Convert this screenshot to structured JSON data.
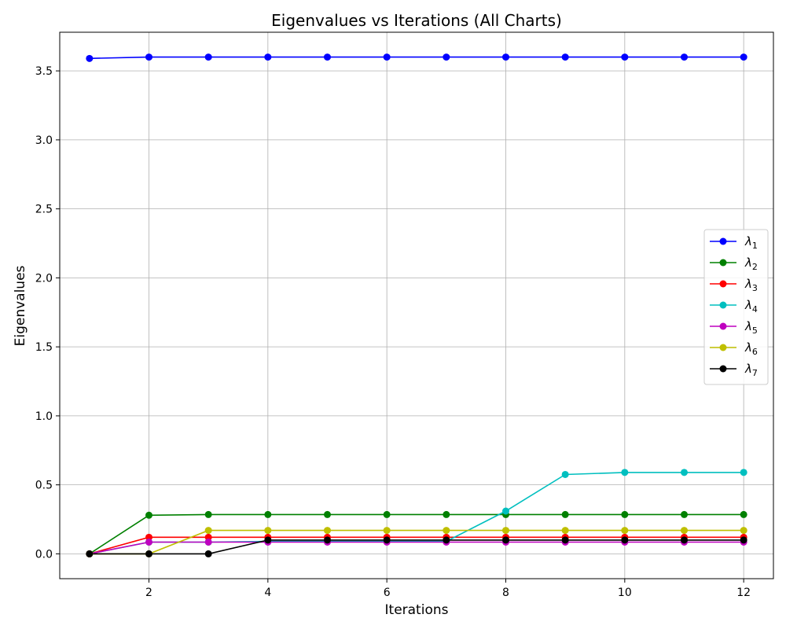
{
  "chart_data": {
    "type": "line",
    "title": "Eigenvalues vs Iterations (All Charts)",
    "xlabel": "Iterations",
    "ylabel": "Eigenvalues",
    "xlim": [
      0.5,
      12.5
    ],
    "ylim": [
      -0.18,
      3.78
    ],
    "xticks": [
      2,
      4,
      6,
      8,
      10,
      12
    ],
    "yticks": [
      0.0,
      0.5,
      1.0,
      1.5,
      2.0,
      2.5,
      3.0,
      3.5
    ],
    "grid": true,
    "legend_position": "center-right",
    "x": [
      1,
      2,
      3,
      4,
      5,
      6,
      7,
      8,
      9,
      10,
      11,
      12
    ],
    "series": [
      {
        "name": "λ",
        "sub": "1",
        "color": "#0000ff",
        "values": [
          3.59,
          3.6,
          3.6,
          3.6,
          3.6,
          3.6,
          3.6,
          3.6,
          3.6,
          3.6,
          3.6,
          3.6
        ]
      },
      {
        "name": "λ",
        "sub": "2",
        "color": "#008000",
        "values": [
          0.0,
          0.28,
          0.285,
          0.285,
          0.285,
          0.285,
          0.285,
          0.285,
          0.285,
          0.285,
          0.285,
          0.285
        ]
      },
      {
        "name": "λ",
        "sub": "3",
        "color": "#ff0000",
        "values": [
          0.0,
          0.12,
          0.12,
          0.12,
          0.12,
          0.12,
          0.12,
          0.12,
          0.12,
          0.12,
          0.12,
          0.12
        ]
      },
      {
        "name": "λ",
        "sub": "4",
        "color": "#00bfbf",
        "values": [
          0.0,
          0.085,
          0.085,
          0.09,
          0.09,
          0.09,
          0.09,
          0.31,
          0.575,
          0.59,
          0.59,
          0.59
        ]
      },
      {
        "name": "λ",
        "sub": "5",
        "color": "#bf00bf",
        "values": [
          0.0,
          0.085,
          0.085,
          0.085,
          0.085,
          0.085,
          0.085,
          0.085,
          0.085,
          0.085,
          0.085,
          0.085
        ]
      },
      {
        "name": "λ",
        "sub": "6",
        "color": "#bfbf00",
        "values": [
          0.0,
          0.0,
          0.17,
          0.17,
          0.17,
          0.17,
          0.17,
          0.17,
          0.17,
          0.17,
          0.17,
          0.17
        ]
      },
      {
        "name": "λ",
        "sub": "7",
        "color": "#000000",
        "values": [
          0.0,
          0.0,
          0.0,
          0.1,
          0.1,
          0.1,
          0.1,
          0.1,
          0.1,
          0.1,
          0.1,
          0.1
        ]
      }
    ]
  }
}
